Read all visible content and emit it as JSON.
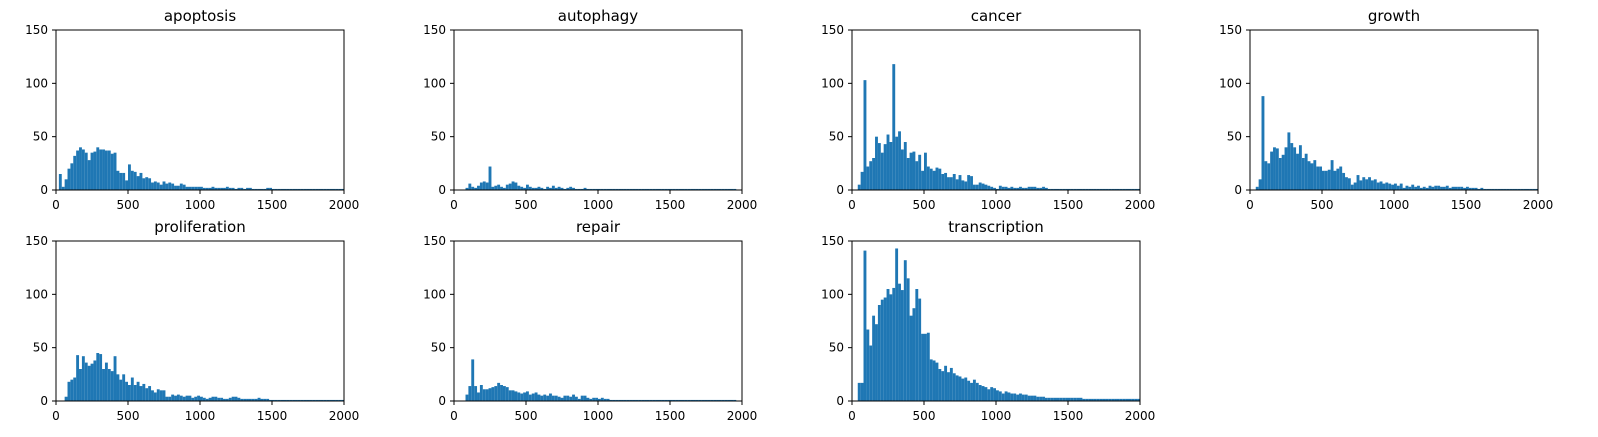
{
  "chart_data": [
    {
      "type": "bar",
      "title": "apoptosis",
      "xlim": [
        0,
        2000
      ],
      "ylim": [
        0,
        150
      ],
      "xticks": [
        "0",
        "500",
        "1000",
        "1500",
        "2000"
      ],
      "yticks": [
        "0",
        "50",
        "100",
        "150"
      ],
      "bin_width": 20,
      "bin_start": 20,
      "values": [
        15,
        3,
        10,
        20,
        25,
        32,
        37,
        40,
        38,
        35,
        28,
        35,
        36,
        40,
        38,
        38,
        37,
        37,
        34,
        35,
        18,
        16,
        16,
        9,
        24,
        18,
        17,
        13,
        16,
        11,
        12,
        11,
        7,
        8,
        7,
        5,
        8,
        6,
        7,
        6,
        4,
        4,
        6,
        5,
        3,
        3,
        3,
        3,
        3,
        3,
        2,
        2,
        2,
        3,
        2,
        2,
        2,
        2,
        3,
        2,
        2,
        1,
        2,
        2,
        1,
        2,
        2,
        1,
        1,
        1,
        1,
        1,
        2,
        2,
        1,
        1,
        1,
        1,
        1,
        1,
        1,
        1,
        1,
        1,
        1,
        1,
        1,
        1,
        1,
        1,
        1,
        1,
        1,
        1,
        1,
        1,
        1,
        1,
        1
      ]
    },
    {
      "type": "bar",
      "title": "autophagy",
      "xlim": [
        0,
        2000
      ],
      "ylim": [
        0,
        150
      ],
      "xticks": [
        "0",
        "500",
        "1000",
        "1500",
        "2000"
      ],
      "yticks": [
        "0",
        "50",
        "100",
        "150"
      ],
      "bin_width": 20,
      "bin_start": 80,
      "values": [
        2,
        6,
        3,
        2,
        4,
        7,
        8,
        7,
        22,
        3,
        4,
        5,
        3,
        2,
        5,
        6,
        8,
        7,
        4,
        3,
        2,
        5,
        3,
        2,
        2,
        3,
        2,
        1,
        3,
        2,
        4,
        2,
        3,
        2,
        1,
        2,
        3,
        2,
        1,
        1,
        1,
        2,
        1,
        1,
        1,
        1,
        1,
        1,
        1,
        1,
        1,
        1,
        1,
        1,
        1,
        1,
        1,
        1,
        1,
        1,
        1,
        1,
        1,
        1,
        1,
        1,
        1,
        1,
        1,
        1,
        1,
        1,
        1,
        1,
        1,
        1,
        1,
        1,
        1,
        1,
        1,
        1,
        1,
        1,
        1,
        1,
        1,
        1,
        1,
        1,
        1,
        1,
        1,
        1
      ]
    },
    {
      "type": "bar",
      "title": "cancer",
      "xlim": [
        0,
        2000
      ],
      "ylim": [
        0,
        150
      ],
      "xticks": [
        "0",
        "500",
        "1000",
        "1500",
        "2000"
      ],
      "yticks": [
        "0",
        "50",
        "100",
        "150"
      ],
      "bin_width": 20,
      "bin_start": 40,
      "values": [
        5,
        17,
        103,
        22,
        27,
        30,
        50,
        44,
        35,
        43,
        52,
        45,
        118,
        50,
        55,
        38,
        45,
        30,
        35,
        36,
        27,
        33,
        18,
        35,
        22,
        20,
        18,
        21,
        20,
        15,
        16,
        12,
        12,
        15,
        10,
        14,
        9,
        8,
        14,
        13,
        5,
        5,
        7,
        6,
        5,
        4,
        3,
        2,
        1,
        4,
        3,
        3,
        2,
        3,
        2,
        2,
        3,
        2,
        2,
        3,
        3,
        3,
        2,
        2,
        3,
        2,
        1,
        1,
        1,
        1,
        1,
        1,
        1,
        1,
        1,
        1,
        1,
        1,
        1,
        1,
        1,
        1,
        1,
        1,
        1,
        1,
        1,
        1,
        1,
        1,
        1,
        1,
        1,
        1,
        1,
        1,
        1,
        1
      ]
    },
    {
      "type": "bar",
      "title": "growth",
      "xlim": [
        0,
        2000
      ],
      "ylim": [
        0,
        150
      ],
      "xticks": [
        "0",
        "500",
        "1000",
        "1500",
        "2000"
      ],
      "yticks": [
        "0",
        "50",
        "100",
        "150"
      ],
      "bin_width": 20,
      "bin_start": 40,
      "values": [
        3,
        10,
        88,
        27,
        25,
        36,
        40,
        39,
        30,
        33,
        40,
        54,
        44,
        40,
        34,
        42,
        30,
        34,
        27,
        25,
        28,
        22,
        22,
        18,
        18,
        19,
        28,
        18,
        20,
        22,
        16,
        12,
        11,
        5,
        7,
        14,
        9,
        12,
        10,
        12,
        9,
        10,
        7,
        8,
        6,
        7,
        6,
        5,
        6,
        4,
        6,
        2,
        4,
        3,
        5,
        3,
        4,
        2,
        3,
        2,
        4,
        3,
        4,
        4,
        3,
        3,
        4,
        2,
        3,
        3,
        3,
        3,
        2,
        3,
        2,
        2,
        2,
        1,
        2,
        1,
        1,
        1,
        1,
        1,
        1,
        1,
        1,
        1,
        1,
        1,
        1,
        1,
        1,
        1,
        1,
        1,
        1,
        1
      ]
    },
    {
      "type": "bar",
      "title": "proliferation",
      "xlim": [
        0,
        2000
      ],
      "ylim": [
        0,
        150
      ],
      "xticks": [
        "0",
        "500",
        "1000",
        "1500",
        "2000"
      ],
      "yticks": [
        "0",
        "50",
        "100",
        "150"
      ],
      "bin_width": 20,
      "bin_start": 60,
      "values": [
        4,
        18,
        20,
        22,
        43,
        30,
        42,
        36,
        33,
        35,
        38,
        45,
        44,
        30,
        36,
        30,
        28,
        42,
        25,
        20,
        25,
        18,
        15,
        22,
        15,
        18,
        14,
        16,
        12,
        14,
        10,
        8,
        11,
        10,
        10,
        4,
        4,
        6,
        5,
        6,
        5,
        4,
        5,
        5,
        3,
        4,
        5,
        4,
        3,
        2,
        3,
        4,
        4,
        3,
        3,
        2,
        2,
        3,
        4,
        4,
        3,
        2,
        2,
        2,
        2,
        2,
        2,
        3,
        2,
        2,
        2,
        1,
        1,
        1,
        1,
        1,
        1,
        1,
        1,
        1,
        1,
        1,
        1,
        1,
        1,
        1,
        1,
        1,
        1,
        1,
        1,
        1,
        1,
        1,
        1,
        1,
        1
      ]
    },
    {
      "type": "bar",
      "title": "repair",
      "xlim": [
        0,
        2000
      ],
      "ylim": [
        0,
        150
      ],
      "xticks": [
        "0",
        "500",
        "1000",
        "1500",
        "2000"
      ],
      "yticks": [
        "0",
        "50",
        "100",
        "150"
      ],
      "bin_width": 20,
      "bin_start": 80,
      "values": [
        6,
        14,
        39,
        14,
        8,
        15,
        11,
        11,
        12,
        13,
        14,
        17,
        15,
        14,
        13,
        10,
        10,
        9,
        8,
        7,
        8,
        9,
        6,
        7,
        8,
        6,
        5,
        6,
        5,
        7,
        5,
        5,
        4,
        3,
        5,
        5,
        4,
        6,
        4,
        2,
        5,
        5,
        3,
        2,
        3,
        3,
        2,
        3,
        2,
        2,
        1,
        1,
        1,
        1,
        1,
        1,
        1,
        1,
        1,
        1,
        1,
        1,
        1,
        1,
        1,
        1,
        1,
        1,
        1,
        1,
        1,
        1,
        1,
        1,
        1,
        1,
        1,
        1,
        1,
        1,
        1,
        1,
        1,
        1,
        1,
        1,
        1,
        1,
        1,
        1,
        1,
        1,
        1,
        1
      ]
    },
    {
      "type": "bar",
      "title": "transcription",
      "xlim": [
        0,
        2000
      ],
      "ylim": [
        0,
        150
      ],
      "xticks": [
        "0",
        "500",
        "1000",
        "1500",
        "2000"
      ],
      "yticks": [
        "0",
        "50",
        "100",
        "150"
      ],
      "bin_width": 20,
      "bin_start": 40,
      "values": [
        17,
        17,
        141,
        67,
        52,
        80,
        72,
        90,
        95,
        97,
        105,
        100,
        106,
        143,
        110,
        104,
        132,
        115,
        80,
        87,
        105,
        96,
        63,
        63,
        64,
        39,
        38,
        36,
        30,
        28,
        33,
        27,
        31,
        26,
        24,
        23,
        21,
        22,
        19,
        17,
        20,
        17,
        15,
        14,
        13,
        11,
        13,
        12,
        10,
        9,
        7,
        9,
        8,
        7,
        7,
        6,
        7,
        6,
        6,
        5,
        5,
        5,
        4,
        4,
        4,
        3,
        3,
        3,
        3,
        3,
        3,
        3,
        3,
        3,
        3,
        3,
        3,
        3,
        2,
        2,
        2,
        2,
        2,
        2,
        2,
        2,
        2,
        2,
        2,
        2,
        2,
        2,
        2,
        2,
        2,
        2,
        2,
        2
      ]
    }
  ],
  "colors": {
    "bar": "#1f77b4",
    "axis": "#000000",
    "background": "#ffffff"
  }
}
